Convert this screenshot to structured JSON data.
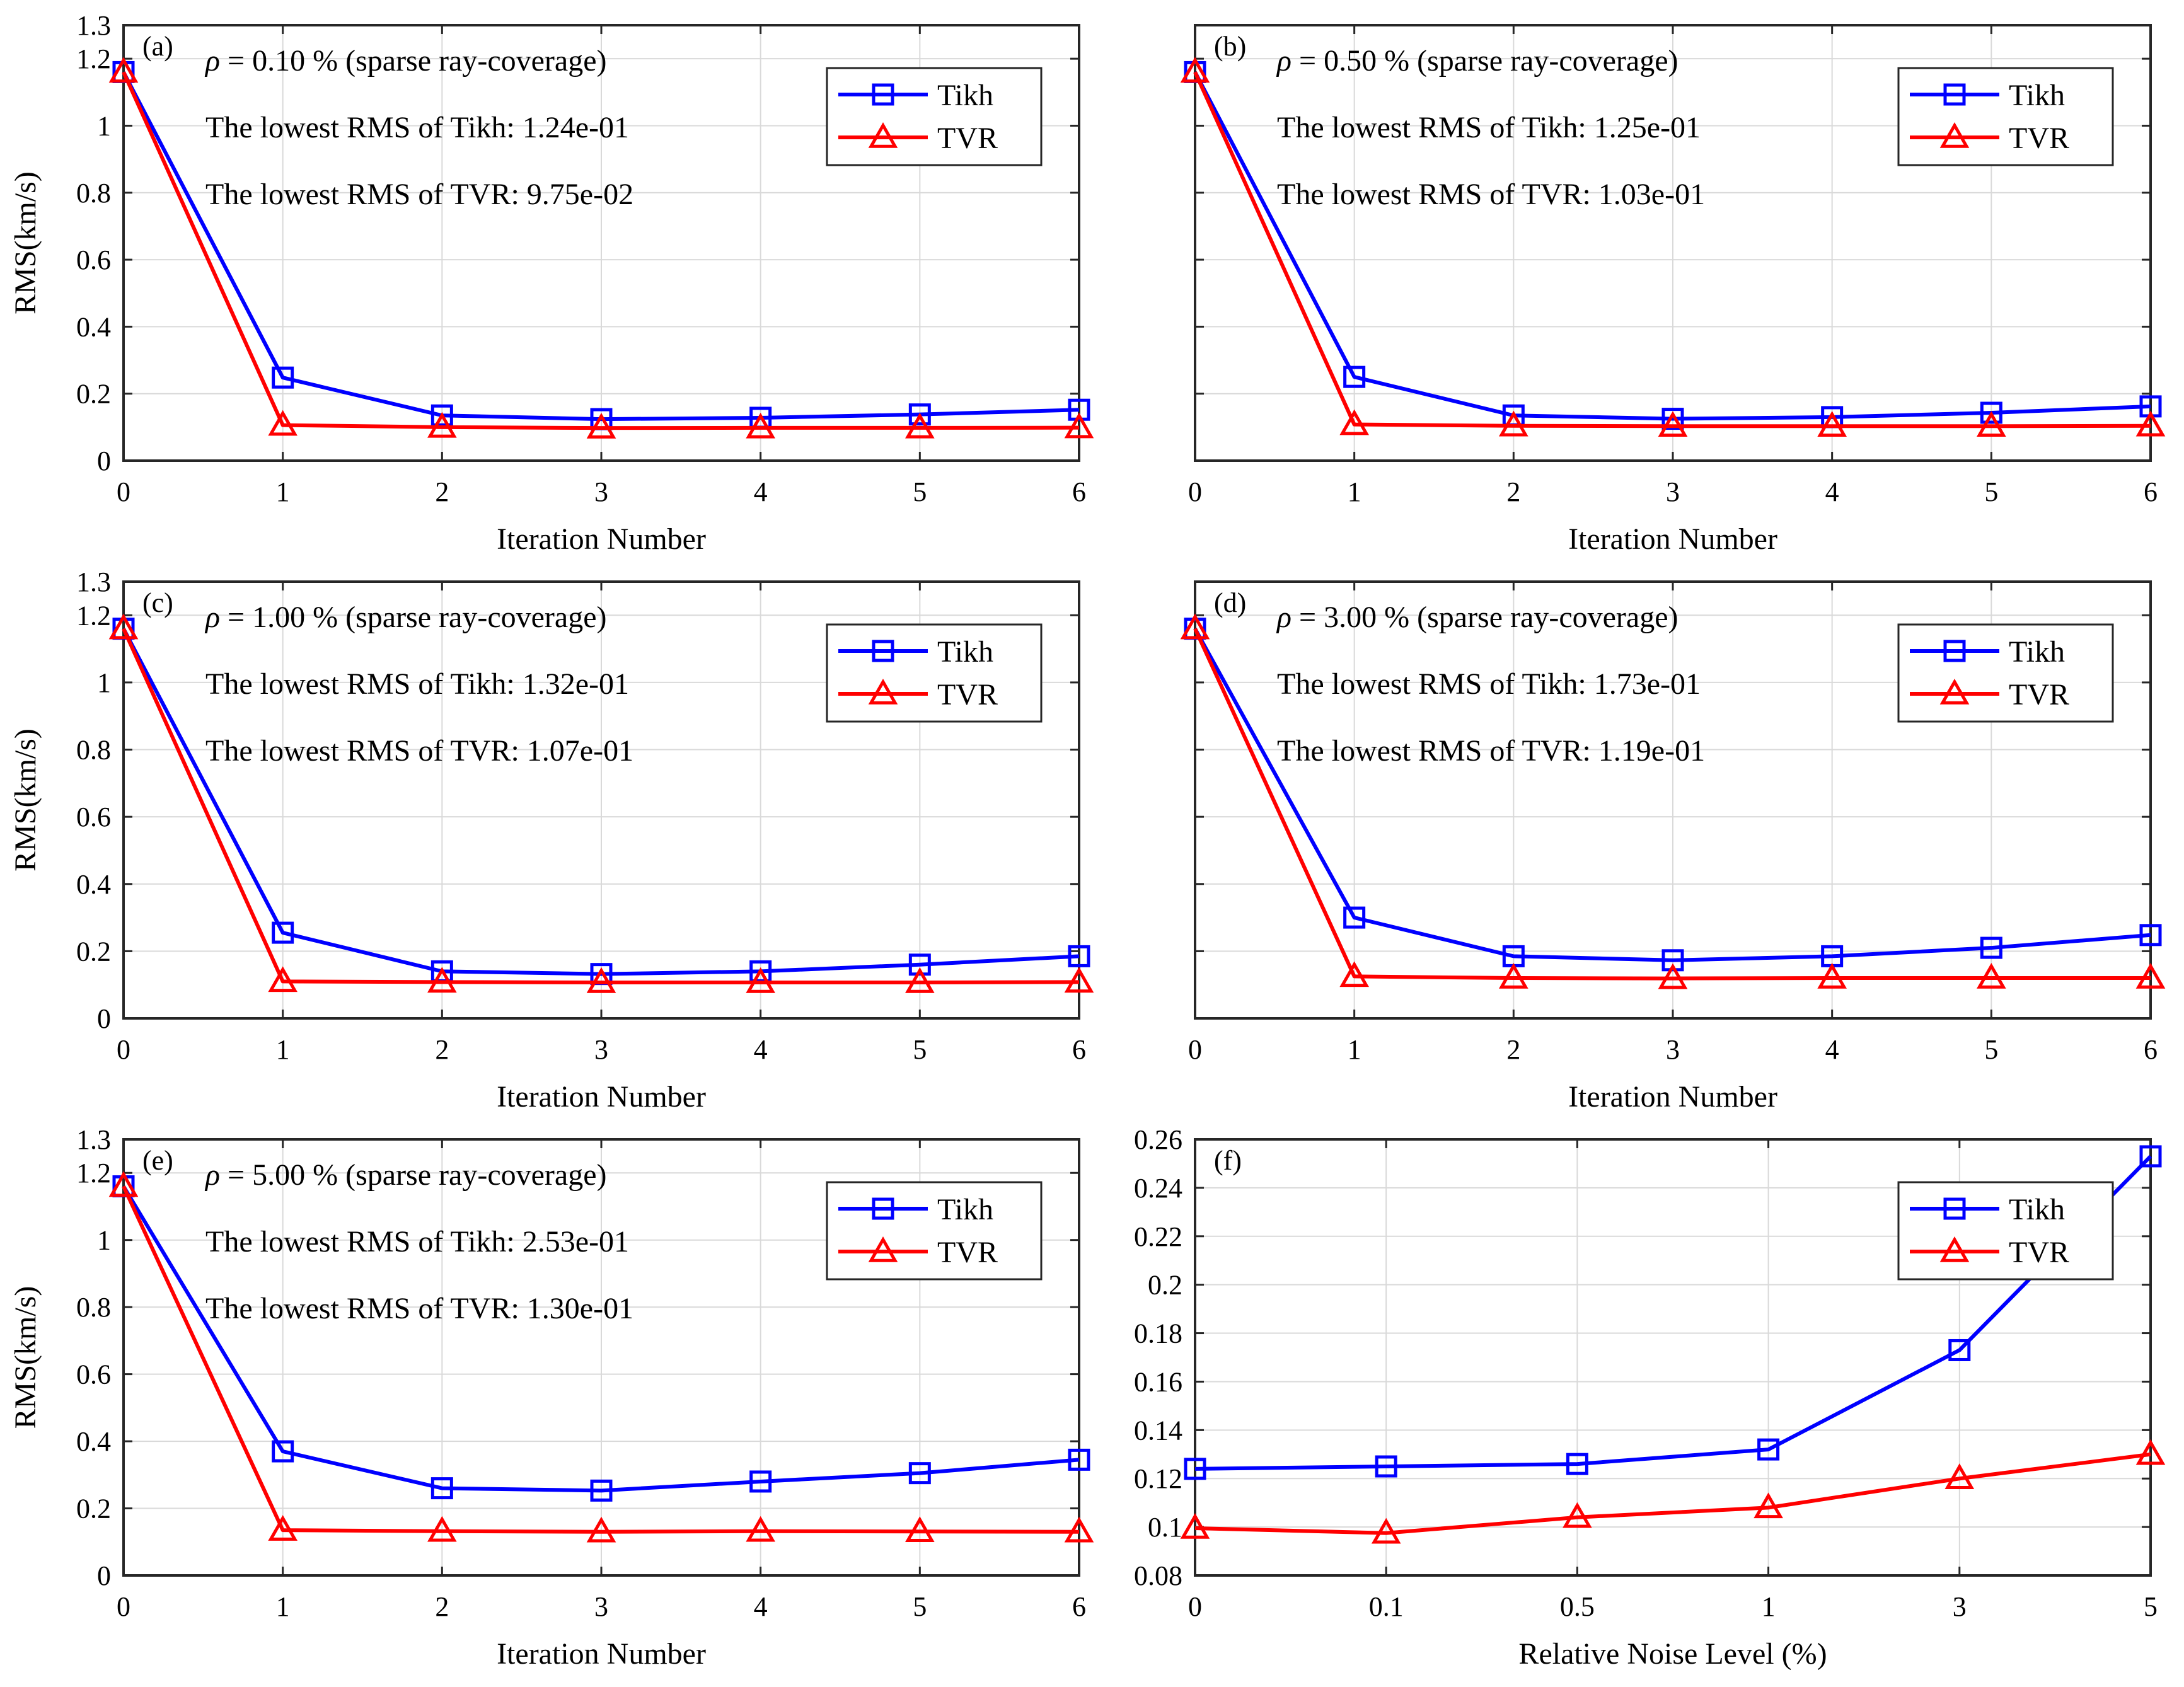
{
  "figure": {
    "colors": {
      "tikh": "#0000ff",
      "tvr": "#ff0000",
      "grid": "#d9d9d9",
      "axis": "#262626"
    },
    "legend": {
      "tikh": "Tikh",
      "tvr": "TVR"
    }
  },
  "chart_data": [
    {
      "type": "line",
      "panel": "(a)",
      "title_prefix": "ρ",
      "title_rest": " = 0.10 % (sparse ray-coverage)",
      "notes": [
        "The lowest RMS of Tikh: 1.24e-01",
        "The lowest RMS of TVR: 9.75e-02"
      ],
      "xlabel": "Iteration Number",
      "ylabel": "RMS(km/s)",
      "x": [
        0,
        1,
        2,
        3,
        4,
        5,
        6
      ],
      "xticklabels": [
        "0",
        "1",
        "2",
        "3",
        "4",
        "5",
        "6"
      ],
      "yticks": [
        0,
        0.2,
        0.4,
        0.6,
        0.8,
        1,
        1.2,
        1.3
      ],
      "yticklabels": [
        "0",
        "0.2",
        "0.4",
        "0.6",
        "0.8",
        "1",
        "1.2",
        "1.3"
      ],
      "ylim": [
        0,
        1.3
      ],
      "grid": true,
      "legend_position": "top-right",
      "series": [
        {
          "name": "Tikh",
          "marker": "square",
          "values": [
            1.16,
            0.248,
            0.135,
            0.124,
            0.128,
            0.138,
            0.152
          ]
        },
        {
          "name": "TVR",
          "marker": "triangle",
          "values": [
            1.16,
            0.106,
            0.1,
            0.0975,
            0.098,
            0.098,
            0.0985
          ]
        }
      ]
    },
    {
      "type": "line",
      "panel": "(b)",
      "title_prefix": "ρ",
      "title_rest": " = 0.50 % (sparse ray-coverage)",
      "notes": [
        "The lowest RMS of Tikh: 1.25e-01",
        "The lowest RMS of TVR: 1.03e-01"
      ],
      "xlabel": "Iteration Number",
      "ylabel": "",
      "x": [
        0,
        1,
        2,
        3,
        4,
        5,
        6
      ],
      "xticklabels": [
        "0",
        "1",
        "2",
        "3",
        "4",
        "5",
        "6"
      ],
      "yticks": [
        0,
        0.2,
        0.4,
        0.6,
        0.8,
        1,
        1.2,
        1.3
      ],
      "yticklabels": [],
      "ylim": [
        0,
        1.3
      ],
      "grid": true,
      "legend_position": "top-right",
      "series": [
        {
          "name": "Tikh",
          "marker": "square",
          "values": [
            1.16,
            0.25,
            0.135,
            0.125,
            0.13,
            0.143,
            0.162
          ]
        },
        {
          "name": "TVR",
          "marker": "triangle",
          "values": [
            1.16,
            0.108,
            0.104,
            0.103,
            0.103,
            0.103,
            0.104
          ]
        }
      ]
    },
    {
      "type": "line",
      "panel": "(c)",
      "title_prefix": "ρ",
      "title_rest": " = 1.00 % (sparse ray-coverage)",
      "notes": [
        "The lowest RMS of Tikh: 1.32e-01",
        "The lowest RMS of TVR: 1.07e-01"
      ],
      "xlabel": "Iteration Number",
      "ylabel": "RMS(km/s)",
      "x": [
        0,
        1,
        2,
        3,
        4,
        5,
        6
      ],
      "xticklabels": [
        "0",
        "1",
        "2",
        "3",
        "4",
        "5",
        "6"
      ],
      "yticks": [
        0,
        0.2,
        0.4,
        0.6,
        0.8,
        1,
        1.2,
        1.3
      ],
      "yticklabels": [
        "0",
        "0.2",
        "0.4",
        "0.6",
        "0.8",
        "1",
        "1.2",
        "1.3"
      ],
      "ylim": [
        0,
        1.3
      ],
      "grid": true,
      "legend_position": "top-right",
      "series": [
        {
          "name": "Tikh",
          "marker": "square",
          "values": [
            1.16,
            0.255,
            0.14,
            0.132,
            0.14,
            0.16,
            0.185
          ]
        },
        {
          "name": "TVR",
          "marker": "triangle",
          "values": [
            1.16,
            0.11,
            0.108,
            0.107,
            0.107,
            0.107,
            0.108
          ]
        }
      ]
    },
    {
      "type": "line",
      "panel": "(d)",
      "title_prefix": "ρ",
      "title_rest": " = 3.00 % (sparse ray-coverage)",
      "notes": [
        "The lowest RMS of Tikh: 1.73e-01",
        "The lowest RMS of TVR: 1.19e-01"
      ],
      "xlabel": "Iteration Number",
      "ylabel": "",
      "x": [
        0,
        1,
        2,
        3,
        4,
        5,
        6
      ],
      "xticklabels": [
        "0",
        "1",
        "2",
        "3",
        "4",
        "5",
        "6"
      ],
      "yticks": [
        0,
        0.2,
        0.4,
        0.6,
        0.8,
        1,
        1.2,
        1.3
      ],
      "yticklabels": [],
      "ylim": [
        0,
        1.3
      ],
      "grid": true,
      "legend_position": "top-right",
      "series": [
        {
          "name": "Tikh",
          "marker": "square",
          "values": [
            1.16,
            0.3,
            0.185,
            0.173,
            0.185,
            0.21,
            0.248
          ]
        },
        {
          "name": "TVR",
          "marker": "triangle",
          "values": [
            1.16,
            0.125,
            0.12,
            0.119,
            0.12,
            0.12,
            0.12
          ]
        }
      ]
    },
    {
      "type": "line",
      "panel": "(e)",
      "title_prefix": "ρ",
      "title_rest": " = 5.00 % (sparse ray-coverage)",
      "notes": [
        "The lowest RMS of Tikh: 2.53e-01",
        "The lowest RMS of TVR: 1.30e-01"
      ],
      "xlabel": "Iteration Number",
      "ylabel": "RMS(km/s)",
      "x": [
        0,
        1,
        2,
        3,
        4,
        5,
        6
      ],
      "xticklabels": [
        "0",
        "1",
        "2",
        "3",
        "4",
        "5",
        "6"
      ],
      "yticks": [
        0,
        0.2,
        0.4,
        0.6,
        0.8,
        1,
        1.2,
        1.3
      ],
      "yticklabels": [
        "0",
        "0.2",
        "0.4",
        "0.6",
        "0.8",
        "1",
        "1.2",
        "1.3"
      ],
      "ylim": [
        0,
        1.3
      ],
      "grid": true,
      "legend_position": "top-right",
      "series": [
        {
          "name": "Tikh",
          "marker": "square",
          "values": [
            1.16,
            0.37,
            0.26,
            0.253,
            0.28,
            0.305,
            0.345
          ]
        },
        {
          "name": "TVR",
          "marker": "triangle",
          "values": [
            1.16,
            0.135,
            0.132,
            0.13,
            0.132,
            0.131,
            0.13
          ]
        }
      ]
    },
    {
      "type": "line",
      "panel": "(f)",
      "title_prefix": "",
      "title_rest": "",
      "notes": [],
      "xlabel": "Relative Noise Level (%)",
      "ylabel": "",
      "x": [
        0,
        1,
        2,
        3,
        4,
        5
      ],
      "xticklabels": [
        "0",
        "0.1",
        "0.5",
        "1",
        "3",
        "5"
      ],
      "yticks": [
        0.08,
        0.1,
        0.12,
        0.14,
        0.16,
        0.18,
        0.2,
        0.22,
        0.24,
        0.26
      ],
      "yticklabels": [
        "0.08",
        "0.1",
        "0.12",
        "0.14",
        "0.16",
        "0.18",
        "0.2",
        "0.22",
        "0.24",
        "0.26"
      ],
      "ylim": [
        0.08,
        0.26
      ],
      "grid": true,
      "legend_position": "top-right",
      "series": [
        {
          "name": "Tikh",
          "marker": "square",
          "values": [
            0.124,
            0.125,
            0.126,
            0.132,
            0.173,
            0.253
          ]
        },
        {
          "name": "TVR",
          "marker": "triangle",
          "values": [
            0.0995,
            0.0975,
            0.104,
            0.108,
            0.12,
            0.13
          ]
        }
      ]
    }
  ]
}
